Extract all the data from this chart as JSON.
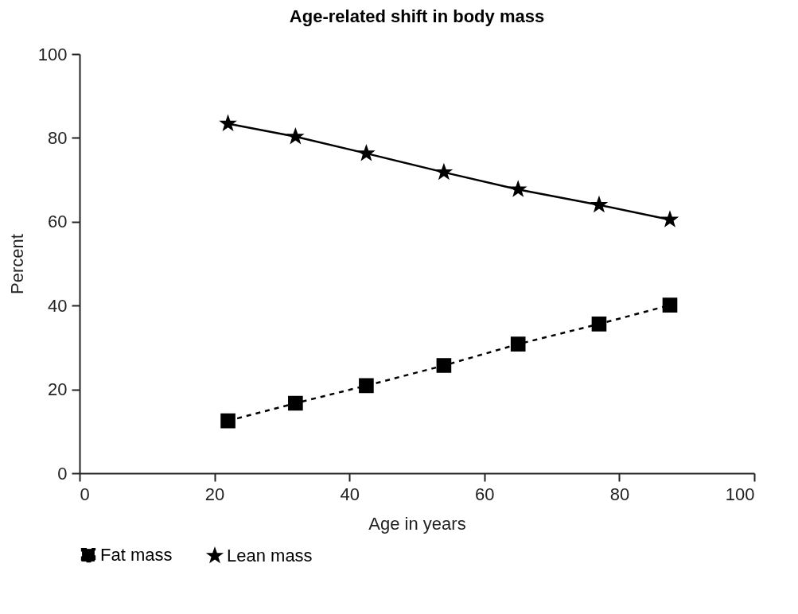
{
  "chart_data": {
    "type": "line",
    "title": "Age-related shift in body mass",
    "xlabel": "Age in years",
    "ylabel": "Percent",
    "xlim": [
      0,
      100
    ],
    "xticks": [
      0,
      20,
      40,
      60,
      80,
      100
    ],
    "ylim": [
      0,
      100
    ],
    "yticks": [
      0,
      20,
      40,
      60,
      80,
      100
    ],
    "grid": false,
    "legend": "bottom",
    "series": [
      {
        "name": "Fat mass",
        "color": "#000000",
        "marker": "square",
        "line_style": "dashed",
        "x": [
          22,
          32,
          42.5,
          54,
          65,
          77,
          87.5
        ],
        "values": [
          12.5,
          16.7,
          20.9,
          25.7,
          30.8,
          35.6,
          40.1
        ]
      },
      {
        "name": "Lean mass",
        "color": "#000000",
        "marker": "star",
        "line_style": "solid",
        "x": [
          22,
          32,
          42.5,
          54,
          65,
          77,
          87.5
        ],
        "values": [
          83.4,
          80.3,
          76.3,
          71.8,
          67.7,
          64,
          60.5
        ]
      }
    ]
  }
}
